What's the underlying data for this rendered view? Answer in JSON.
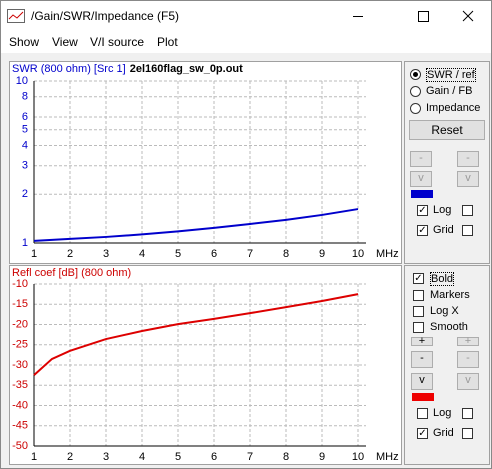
{
  "window": {
    "title": "/Gain/SWR/Impedance (F5)"
  },
  "menu": [
    "Show",
    "View",
    "V/I source",
    "Plot"
  ],
  "chart_data": [
    {
      "type": "line",
      "title": "SWR (800 ohm) [Src 1]",
      "file": "2el160flag_sw_0p.out",
      "xlabel": "MHz",
      "x": [
        1,
        2,
        3,
        4,
        5,
        6,
        7,
        8,
        9,
        10
      ],
      "values": [
        1.03,
        1.06,
        1.09,
        1.13,
        1.18,
        1.24,
        1.31,
        1.39,
        1.49,
        1.62
      ],
      "color": "#0000cc",
      "title_color": "#0000cc",
      "xlim": [
        1,
        10
      ],
      "xticks": [
        1,
        2,
        3,
        4,
        5,
        6,
        7,
        8,
        9,
        10
      ],
      "ylim": [
        1,
        10
      ],
      "yticks": [
        1,
        2,
        3,
        4,
        5,
        6,
        8,
        10
      ],
      "log_y": true,
      "grid": true
    },
    {
      "type": "line",
      "title": "Refl coef [dB] (800 ohm)",
      "xlabel": "MHz",
      "x": [
        1,
        1.5,
        2,
        3,
        4,
        5,
        6,
        7,
        8,
        9,
        10
      ],
      "values": [
        -32.5,
        -28.5,
        -26.5,
        -23.6,
        -21.6,
        -19.9,
        -18.6,
        -17.2,
        -15.7,
        -14.2,
        -12.5
      ],
      "color": "#dd0000",
      "title_color": "#cc0000",
      "xlim": [
        1,
        10
      ],
      "xticks": [
        1,
        2,
        3,
        4,
        5,
        6,
        7,
        8,
        9,
        10
      ],
      "ylim": [
        -50,
        -10
      ],
      "yticks": [
        -10,
        -15,
        -20,
        -25,
        -30,
        -35,
        -40,
        -45,
        -50
      ],
      "log_y": false,
      "grid": true
    }
  ],
  "controls": {
    "top": {
      "radios": [
        "SWR / ref",
        "Gain / FB",
        "Impedance"
      ],
      "reset": "Reset",
      "buttons": [
        "-",
        "-",
        "v",
        "v"
      ],
      "checks": [
        "Log",
        "Grid"
      ]
    },
    "bottom": {
      "checks": [
        "Bold",
        "Markers",
        "Log X",
        "Smooth"
      ],
      "buttons": [
        "+",
        "+",
        "-",
        "-",
        "v",
        "v"
      ],
      "checks2": [
        "Log",
        "Grid"
      ]
    }
  }
}
